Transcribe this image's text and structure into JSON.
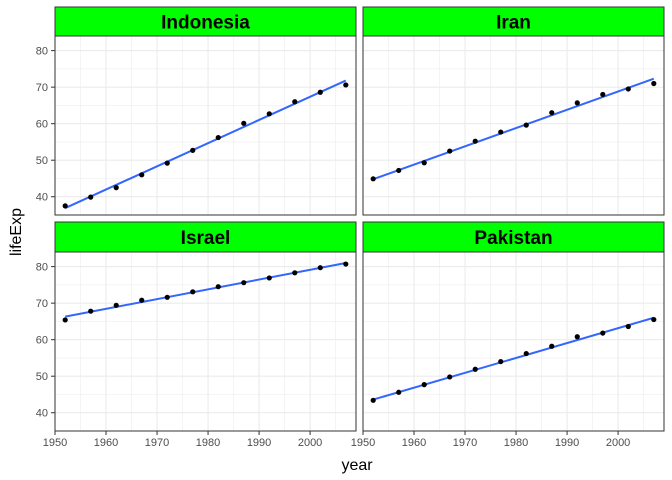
{
  "chart_data": {
    "type": "scatter",
    "xlabel": "year",
    "ylabel": "lifeExp",
    "xlim": [
      1950,
      2009
    ],
    "ylim": [
      35,
      84
    ],
    "xticks": [
      1950,
      1960,
      1970,
      1980,
      1990,
      2000
    ],
    "yticks": [
      40,
      50,
      60,
      70,
      80
    ],
    "grid": true,
    "smooth": "linear",
    "colors": {
      "strip": "#00ff00",
      "point": "#000000",
      "trend_line": "#3366ff",
      "grid": "#ebebeb",
      "panel_border": "#333333"
    },
    "years": [
      1952,
      1957,
      1962,
      1967,
      1972,
      1977,
      1982,
      1987,
      1992,
      1997,
      2002,
      2007
    ],
    "panels": [
      {
        "name": "Indonesia",
        "lifeExp": [
          37.5,
          39.9,
          42.5,
          46.0,
          49.2,
          52.7,
          56.2,
          60.1,
          62.7,
          66.0,
          68.6,
          70.6
        ],
        "fit": [
          36.9,
          71.8
        ]
      },
      {
        "name": "Iran",
        "lifeExp": [
          44.9,
          47.2,
          49.3,
          52.5,
          55.2,
          57.7,
          59.6,
          63.0,
          65.7,
          68.0,
          69.5,
          71.0
        ],
        "fit": [
          44.8,
          72.3
        ]
      },
      {
        "name": "Israel",
        "lifeExp": [
          65.4,
          67.8,
          69.4,
          70.8,
          71.6,
          73.1,
          74.5,
          75.6,
          76.9,
          78.3,
          79.7,
          80.7
        ],
        "fit": [
          66.3,
          81.0
        ]
      },
      {
        "name": "Pakistan",
        "lifeExp": [
          43.4,
          45.6,
          47.7,
          49.8,
          51.9,
          54.0,
          56.2,
          58.2,
          60.8,
          61.8,
          63.6,
          65.5
        ],
        "fit": [
          43.6,
          66.0
        ]
      }
    ]
  }
}
